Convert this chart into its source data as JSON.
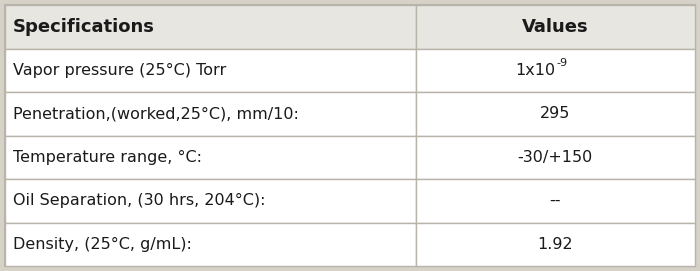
{
  "header": [
    "Specifications",
    "Values"
  ],
  "rows": [
    [
      "Vapor pressure (25°C) Torr",
      "1x10^{-9}"
    ],
    [
      "Penetration,(worked,25°C), mm/10:",
      "295"
    ],
    [
      "Temperature range, °C:",
      "-30/+150"
    ],
    [
      "Oil Separation, (30 hrs, 204°C):",
      "--"
    ],
    [
      "Density, (25°C, g/mL):",
      "1.92"
    ]
  ],
  "header_bg": "#e8e6e1",
  "cell_bg": "#ffffff",
  "outer_bg": "#d6d2c8",
  "border_color": "#b8b4aa",
  "text_color": "#1a1a1a",
  "col_split": 0.595,
  "font_size": 11.5,
  "header_font_size": 13,
  "fig_w": 7.0,
  "fig_h": 2.71,
  "dpi": 100
}
